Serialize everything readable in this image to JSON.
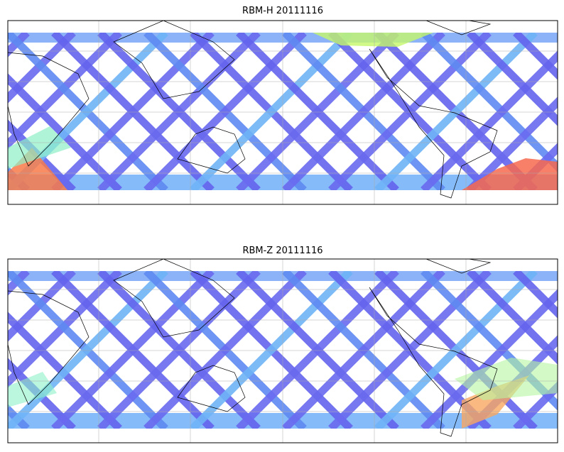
{
  "panels": [
    {
      "title": "RBM-H 20111116"
    },
    {
      "title": "RBM-Z 20111116"
    }
  ]
}
